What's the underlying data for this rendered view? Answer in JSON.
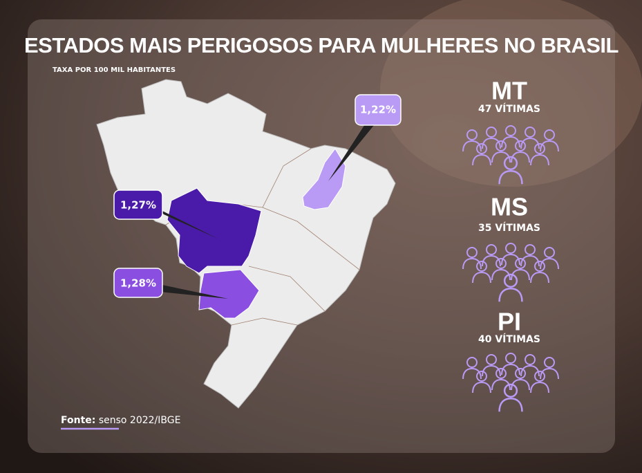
{
  "header": {
    "title": "ESTADOS MAIS PERIGOSOS PARA MULHERES NO BRASIL",
    "subtitle": "TAXA POR 100 MIL HABITANTES"
  },
  "map": {
    "callouts": [
      "1,27%",
      "1,28%",
      "1,22%"
    ]
  },
  "stats": [
    {
      "state": "MT",
      "victims": "47 VÍTIMAS"
    },
    {
      "state": "MS",
      "victims": "35 VÍTIMAS"
    },
    {
      "state": "PI",
      "victims": "40 VÍTIMAS"
    }
  ],
  "source": {
    "label": "Fonte:",
    "text": "senso 2022/IBGE"
  }
}
